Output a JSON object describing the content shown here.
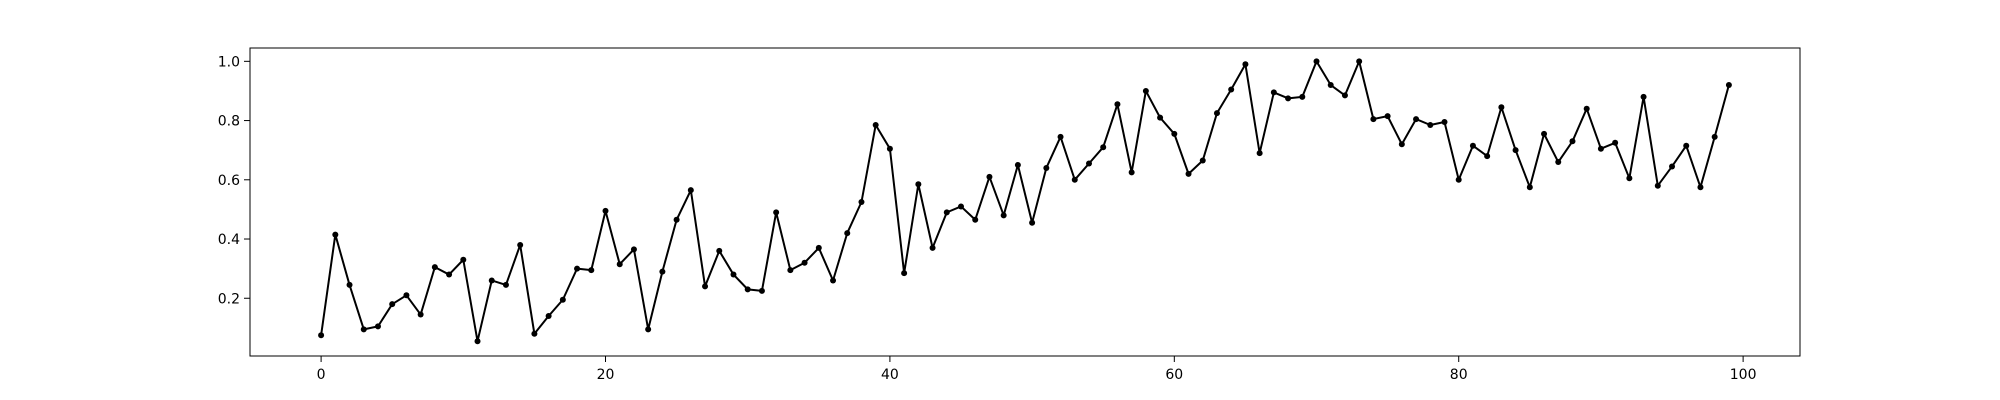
{
  "chart_data": {
    "type": "line",
    "title": "",
    "xlabel": "",
    "ylabel": "",
    "xlim": [
      -5,
      104
    ],
    "ylim": [
      0.005,
      1.045
    ],
    "grid": false,
    "legend": "none",
    "colors": {
      "line": "#000000",
      "marker": "#000000",
      "axes": "#000000",
      "background": "#ffffff"
    },
    "x_ticks": [
      {
        "value": 0,
        "label": "0"
      },
      {
        "value": 20,
        "label": "20"
      },
      {
        "value": 40,
        "label": "40"
      },
      {
        "value": 60,
        "label": "60"
      },
      {
        "value": 80,
        "label": "80"
      },
      {
        "value": 100,
        "label": "100"
      }
    ],
    "y_ticks": [
      {
        "value": 0.2,
        "label": "0.2"
      },
      {
        "value": 0.4,
        "label": "0.4"
      },
      {
        "value": 0.6,
        "label": "0.6"
      },
      {
        "value": 0.8,
        "label": "0.8"
      },
      {
        "value": 1.0,
        "label": "1.0"
      }
    ],
    "series": [
      {
        "x": [
          0,
          1,
          2,
          3,
          4,
          5,
          6,
          7,
          8,
          9,
          10,
          11,
          12,
          13,
          14,
          15,
          16,
          17,
          18,
          19,
          20,
          21,
          22,
          23,
          24,
          25,
          26,
          27,
          28,
          29,
          30,
          31,
          32,
          33,
          34,
          35,
          36,
          37,
          38,
          39,
          40,
          41,
          42,
          43,
          44,
          45,
          46,
          47,
          48,
          49,
          50,
          51,
          52,
          53,
          54,
          55,
          56,
          57,
          58,
          59,
          60,
          61,
          62,
          63,
          64,
          65,
          66,
          67,
          68,
          69,
          70,
          71,
          72,
          73,
          74,
          75,
          76,
          77,
          78,
          79,
          80,
          81,
          82,
          83,
          84,
          85,
          86,
          87,
          88,
          89,
          90,
          91,
          92,
          93,
          94,
          95,
          96,
          97,
          98,
          99
        ],
        "values": [
          0.075,
          0.415,
          0.245,
          0.095,
          0.105,
          0.18,
          0.21,
          0.145,
          0.305,
          0.28,
          0.33,
          0.055,
          0.26,
          0.245,
          0.38,
          0.08,
          0.14,
          0.195,
          0.3,
          0.295,
          0.495,
          0.315,
          0.365,
          0.095,
          0.29,
          0.465,
          0.565,
          0.24,
          0.36,
          0.28,
          0.23,
          0.225,
          0.49,
          0.295,
          0.32,
          0.37,
          0.26,
          0.42,
          0.525,
          0.785,
          0.705,
          0.285,
          0.585,
          0.37,
          0.49,
          0.51,
          0.465,
          0.61,
          0.48,
          0.65,
          0.455,
          0.64,
          0.745,
          0.6,
          0.655,
          0.71,
          0.855,
          0.625,
          0.9,
          0.81,
          0.755,
          0.62,
          0.665,
          0.825,
          0.905,
          0.99,
          0.69,
          0.895,
          0.875,
          0.88,
          1.0,
          0.92,
          0.885,
          1.0,
          0.805,
          0.815,
          0.72,
          0.805,
          0.785,
          0.795,
          0.6,
          0.715,
          0.68,
          0.845,
          0.7,
          0.575,
          0.755,
          0.66,
          0.73,
          0.84,
          0.705,
          0.725,
          0.605,
          0.88,
          0.58,
          0.645,
          0.715,
          0.575,
          0.745,
          0.92
        ]
      }
    ]
  }
}
